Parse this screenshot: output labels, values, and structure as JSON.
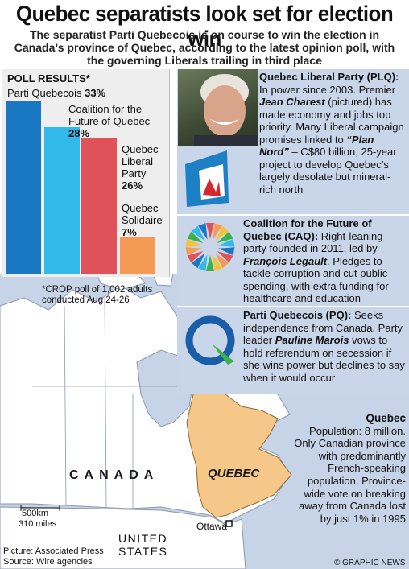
{
  "headline": "Quebec separatists look set for election win",
  "subhead": "The separatist Parti Quebecois is on course to win the election in Canada’s province of Quebec, according to the latest opinion poll, with the governing Liberals trailing in third place",
  "poll": {
    "title": "POLL RESULTS*",
    "footnote": "*CROP poll of 1,002 adults conducted Aug 24-26"
  },
  "chart_data": {
    "type": "bar",
    "title": "POLL RESULTS*",
    "categories": [
      "Parti Quebecois",
      "Coalition for the Future of Quebec",
      "Quebec Liberal Party",
      "Quebec Solidaire"
    ],
    "values": [
      33,
      28,
      26,
      7
    ],
    "value_labels": [
      "33%",
      "28%",
      "26%",
      "7%"
    ],
    "colors": [
      "#1a78c2",
      "#33b8ea",
      "#e0525a",
      "#f59a55"
    ],
    "grid": false,
    "legend": "none"
  },
  "bar_labels": [
    {
      "name": "Parti Quebecois",
      "value": "33%"
    },
    {
      "name": "Coalition for the Future of Quebec",
      "value": "28%"
    },
    {
      "name": "Quebec Liberal Party",
      "value": "26%"
    },
    {
      "name": "Quebec Solidaire",
      "value": "7%"
    }
  ],
  "bar_label_lines": {
    "coalition_l1": "Coalition for the",
    "coalition_l2": "Future of Quebec",
    "liberal_l1": "Quebec",
    "liberal_l2": "Liberal",
    "liberal_l3": "Party",
    "solidaire_l1": "Quebec",
    "solidaire_l2": "Solidaire"
  },
  "parties": [
    {
      "heading": "Quebec Liberal Party (PLQ):",
      "t1": "In power since 2003. Premier",
      "leader": "Jean Charest",
      "t2": "(pictured) has made economy and jobs top priority. Many Liberal campaign promises linked to",
      "plan": "“Plan Nord”",
      "t3": "– C$80 billion, 25-year project to develop Quebec’s largely desolate but mineral-rich north"
    },
    {
      "heading": "Coalition for the Future of Quebec (CAQ):",
      "t1": "Right-leaning party founded in 2011, led by",
      "leader": "François Legault",
      "t2": ". Pledges to tackle corruption and cut public spending, with extra funding for healthcare and education"
    },
    {
      "heading": "Parti Quebecois (PQ):",
      "t1": "Seeks independence from Canada. Party leader",
      "leader": "Pauline Marois",
      "t2": "vows to hold referendum on secession if she wins power but declines to say when it would occur"
    }
  ],
  "quebec_box": {
    "heading": "Quebec",
    "body": "Population: 8 million. Only Canadian province with predominantly French-speaking population. Province-wide vote on breaking away from Canada lost by just 1% in 1995"
  },
  "map": {
    "canada": "CANADA",
    "quebec": "QUEBEC",
    "ottawa": "Ottawa",
    "us_line1": "UNITED",
    "us_line2": "STATES",
    "scale_km": "500km",
    "scale_mi": "310 miles",
    "colors": {
      "land": "#ffffff",
      "quebec": "#f5c88a",
      "water": "#c7d3e6"
    }
  },
  "credits": {
    "picture": "Picture: Associated Press",
    "source": "Source: Wire agencies",
    "brand": "© GRAPHIC NEWS"
  }
}
